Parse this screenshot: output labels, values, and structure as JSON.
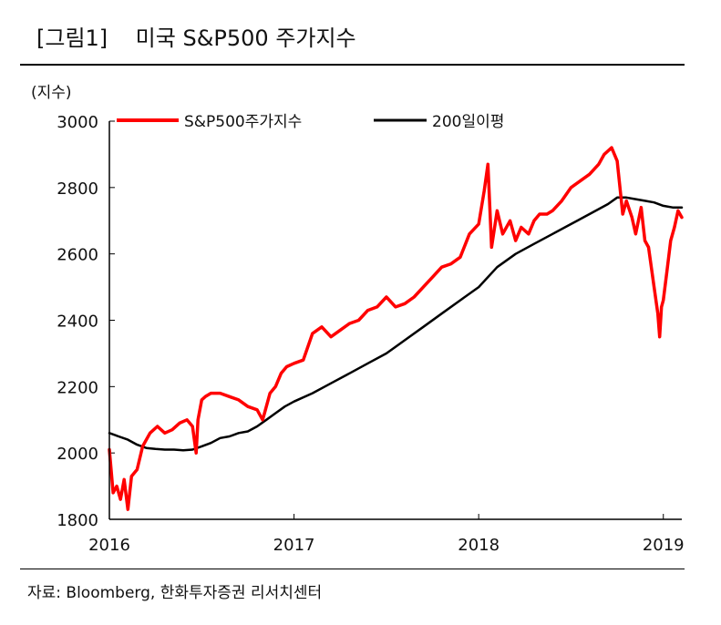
{
  "figure": {
    "title": "[그림1]    미국 S&P500 주가지수",
    "source": "자료: Bloomberg, 한화투자증권 리서치센터"
  },
  "chart_data": {
    "type": "line",
    "unit_label": "(지수)",
    "ylim": [
      1800,
      3000
    ],
    "yticks": [
      1800,
      2000,
      2200,
      2400,
      2600,
      2800,
      3000
    ],
    "xlim": [
      2016.0,
      2019.1
    ],
    "xticks": [
      "2016",
      "2017",
      "2018",
      "2019"
    ],
    "grid": false,
    "legend_position": "top",
    "series": [
      {
        "name": "S&P500주가지수",
        "color": "#ff0000",
        "x": [
          2016.0,
          2016.02,
          2016.04,
          2016.06,
          2016.08,
          2016.1,
          2016.12,
          2016.15,
          2016.18,
          2016.22,
          2016.26,
          2016.3,
          2016.34,
          2016.38,
          2016.42,
          2016.45,
          2016.47,
          2016.48,
          2016.5,
          2016.52,
          2016.55,
          2016.6,
          2016.65,
          2016.7,
          2016.75,
          2016.8,
          2016.83,
          2016.84,
          2016.87,
          2016.9,
          2016.93,
          2016.96,
          2017.0,
          2017.05,
          2017.1,
          2017.15,
          2017.2,
          2017.25,
          2017.3,
          2017.35,
          2017.4,
          2017.45,
          2017.5,
          2017.55,
          2017.6,
          2017.65,
          2017.7,
          2017.75,
          2017.8,
          2017.85,
          2017.9,
          2017.95,
          2018.0,
          2018.03,
          2018.05,
          2018.07,
          2018.1,
          2018.13,
          2018.17,
          2018.2,
          2018.23,
          2018.27,
          2018.3,
          2018.33,
          2018.37,
          2018.4,
          2018.45,
          2018.5,
          2018.55,
          2018.6,
          2018.65,
          2018.68,
          2018.72,
          2018.75,
          2018.78,
          2018.8,
          2018.83,
          2018.85,
          2018.88,
          2018.9,
          2018.92,
          2018.95,
          2018.97,
          2018.98,
          2018.99,
          2019.0,
          2019.02,
          2019.04,
          2019.06,
          2019.08,
          2019.1
        ],
        "y": [
          2010,
          1880,
          1900,
          1860,
          1920,
          1830,
          1930,
          1950,
          2020,
          2060,
          2080,
          2060,
          2070,
          2090,
          2100,
          2080,
          2000,
          2100,
          2160,
          2170,
          2180,
          2180,
          2170,
          2160,
          2140,
          2130,
          2100,
          2120,
          2180,
          2200,
          2240,
          2260,
          2270,
          2280,
          2360,
          2380,
          2350,
          2370,
          2390,
          2400,
          2430,
          2440,
          2470,
          2440,
          2450,
          2470,
          2500,
          2530,
          2560,
          2570,
          2590,
          2660,
          2690,
          2790,
          2870,
          2620,
          2730,
          2660,
          2700,
          2640,
          2680,
          2660,
          2700,
          2720,
          2720,
          2730,
          2760,
          2800,
          2820,
          2840,
          2870,
          2900,
          2920,
          2880,
          2720,
          2760,
          2710,
          2660,
          2740,
          2640,
          2620,
          2500,
          2420,
          2350,
          2440,
          2460,
          2550,
          2640,
          2680,
          2730,
          2710
        ]
      },
      {
        "name": "200일이평",
        "color": "#000000",
        "x": [
          2016.0,
          2016.05,
          2016.1,
          2016.15,
          2016.2,
          2016.25,
          2016.3,
          2016.35,
          2016.4,
          2016.45,
          2016.5,
          2016.55,
          2016.6,
          2016.65,
          2016.7,
          2016.75,
          2016.8,
          2016.85,
          2016.9,
          2016.95,
          2017.0,
          2017.1,
          2017.2,
          2017.3,
          2017.4,
          2017.5,
          2017.6,
          2017.7,
          2017.8,
          2017.9,
          2018.0,
          2018.1,
          2018.2,
          2018.3,
          2018.4,
          2018.5,
          2018.6,
          2018.7,
          2018.75,
          2018.8,
          2018.85,
          2018.9,
          2018.95,
          2019.0,
          2019.05,
          2019.1
        ],
        "y": [
          2060,
          2050,
          2040,
          2025,
          2015,
          2012,
          2010,
          2010,
          2008,
          2010,
          2020,
          2030,
          2045,
          2050,
          2060,
          2065,
          2080,
          2100,
          2120,
          2140,
          2155,
          2180,
          2210,
          2240,
          2270,
          2300,
          2340,
          2380,
          2420,
          2460,
          2500,
          2560,
          2600,
          2630,
          2660,
          2690,
          2720,
          2750,
          2770,
          2770,
          2765,
          2760,
          2755,
          2745,
          2740,
          2740
        ]
      }
    ]
  }
}
